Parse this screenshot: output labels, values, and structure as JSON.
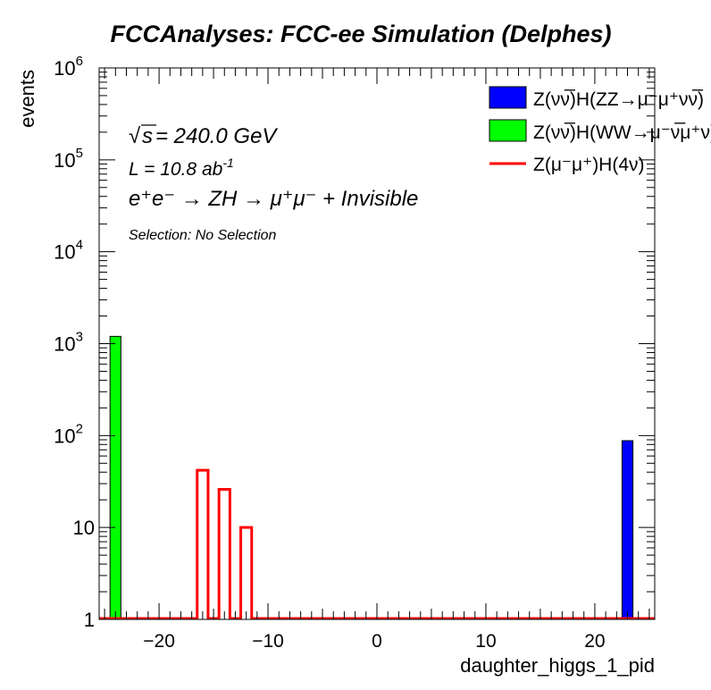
{
  "chart_data": {
    "type": "bar",
    "title": "FCCAnalyses: FCC-ee Simulation (Delphes)",
    "xlabel": "daughter_higgs_1_pid",
    "ylabel": "events",
    "xlim": [
      -25.5,
      25.5
    ],
    "ylim": [
      1,
      1000000
    ],
    "yscale": "log",
    "grid": false,
    "legend_position": "top-right",
    "x_ticks": [
      "−20",
      "−10",
      "0",
      "10",
      "20"
    ],
    "x_tick_values": [
      -20,
      -10,
      0,
      10,
      20
    ],
    "y_ticks": [
      {
        "value": 1,
        "base": "1",
        "exp": ""
      },
      {
        "value": 10,
        "base": "10",
        "exp": ""
      },
      {
        "value": 100,
        "base": "10",
        "exp": "2"
      },
      {
        "value": 1000,
        "base": "10",
        "exp": "3"
      },
      {
        "value": 10000,
        "base": "10",
        "exp": "4"
      },
      {
        "value": 100000,
        "base": "10",
        "exp": "5"
      },
      {
        "value": 1000000,
        "base": "10",
        "exp": "6"
      }
    ],
    "annotations": {
      "sqrt_s_symbol": "√",
      "sqrt_s_var": "s",
      "sqrt_s_value": " = 240.0 GeV",
      "lumi_prefix": "L = 10.8 ab",
      "lumi_exp": "-1",
      "process": "e⁺e⁻ → ZH → μ⁺μ⁻ + Invisible",
      "selection": "Selection: No Selection"
    },
    "series": [
      {
        "name": "Z(νν̅)H(ZZ→μ⁻μ⁺νν̅)",
        "style": "filled",
        "color": "#0000ff",
        "bins": [
          {
            "x0": 22.5,
            "x1": 23.5,
            "value": 88
          }
        ]
      },
      {
        "name": "Z(νν̅)H(WW→μ⁻ν̅μ⁺ν)",
        "style": "filled",
        "color": "#00ff00",
        "bins": [
          {
            "x0": -24.5,
            "x1": -23.5,
            "value": 1200
          }
        ]
      },
      {
        "name": "Z(μ⁻μ⁺)H(4ν)",
        "style": "step",
        "color": "#ff0000",
        "bins": [
          {
            "x0": -16.5,
            "x1": -15.5,
            "value": 42
          },
          {
            "x0": -14.5,
            "x1": -13.5,
            "value": 26
          },
          {
            "x0": -12.5,
            "x1": -11.5,
            "value": 10
          }
        ]
      }
    ]
  }
}
